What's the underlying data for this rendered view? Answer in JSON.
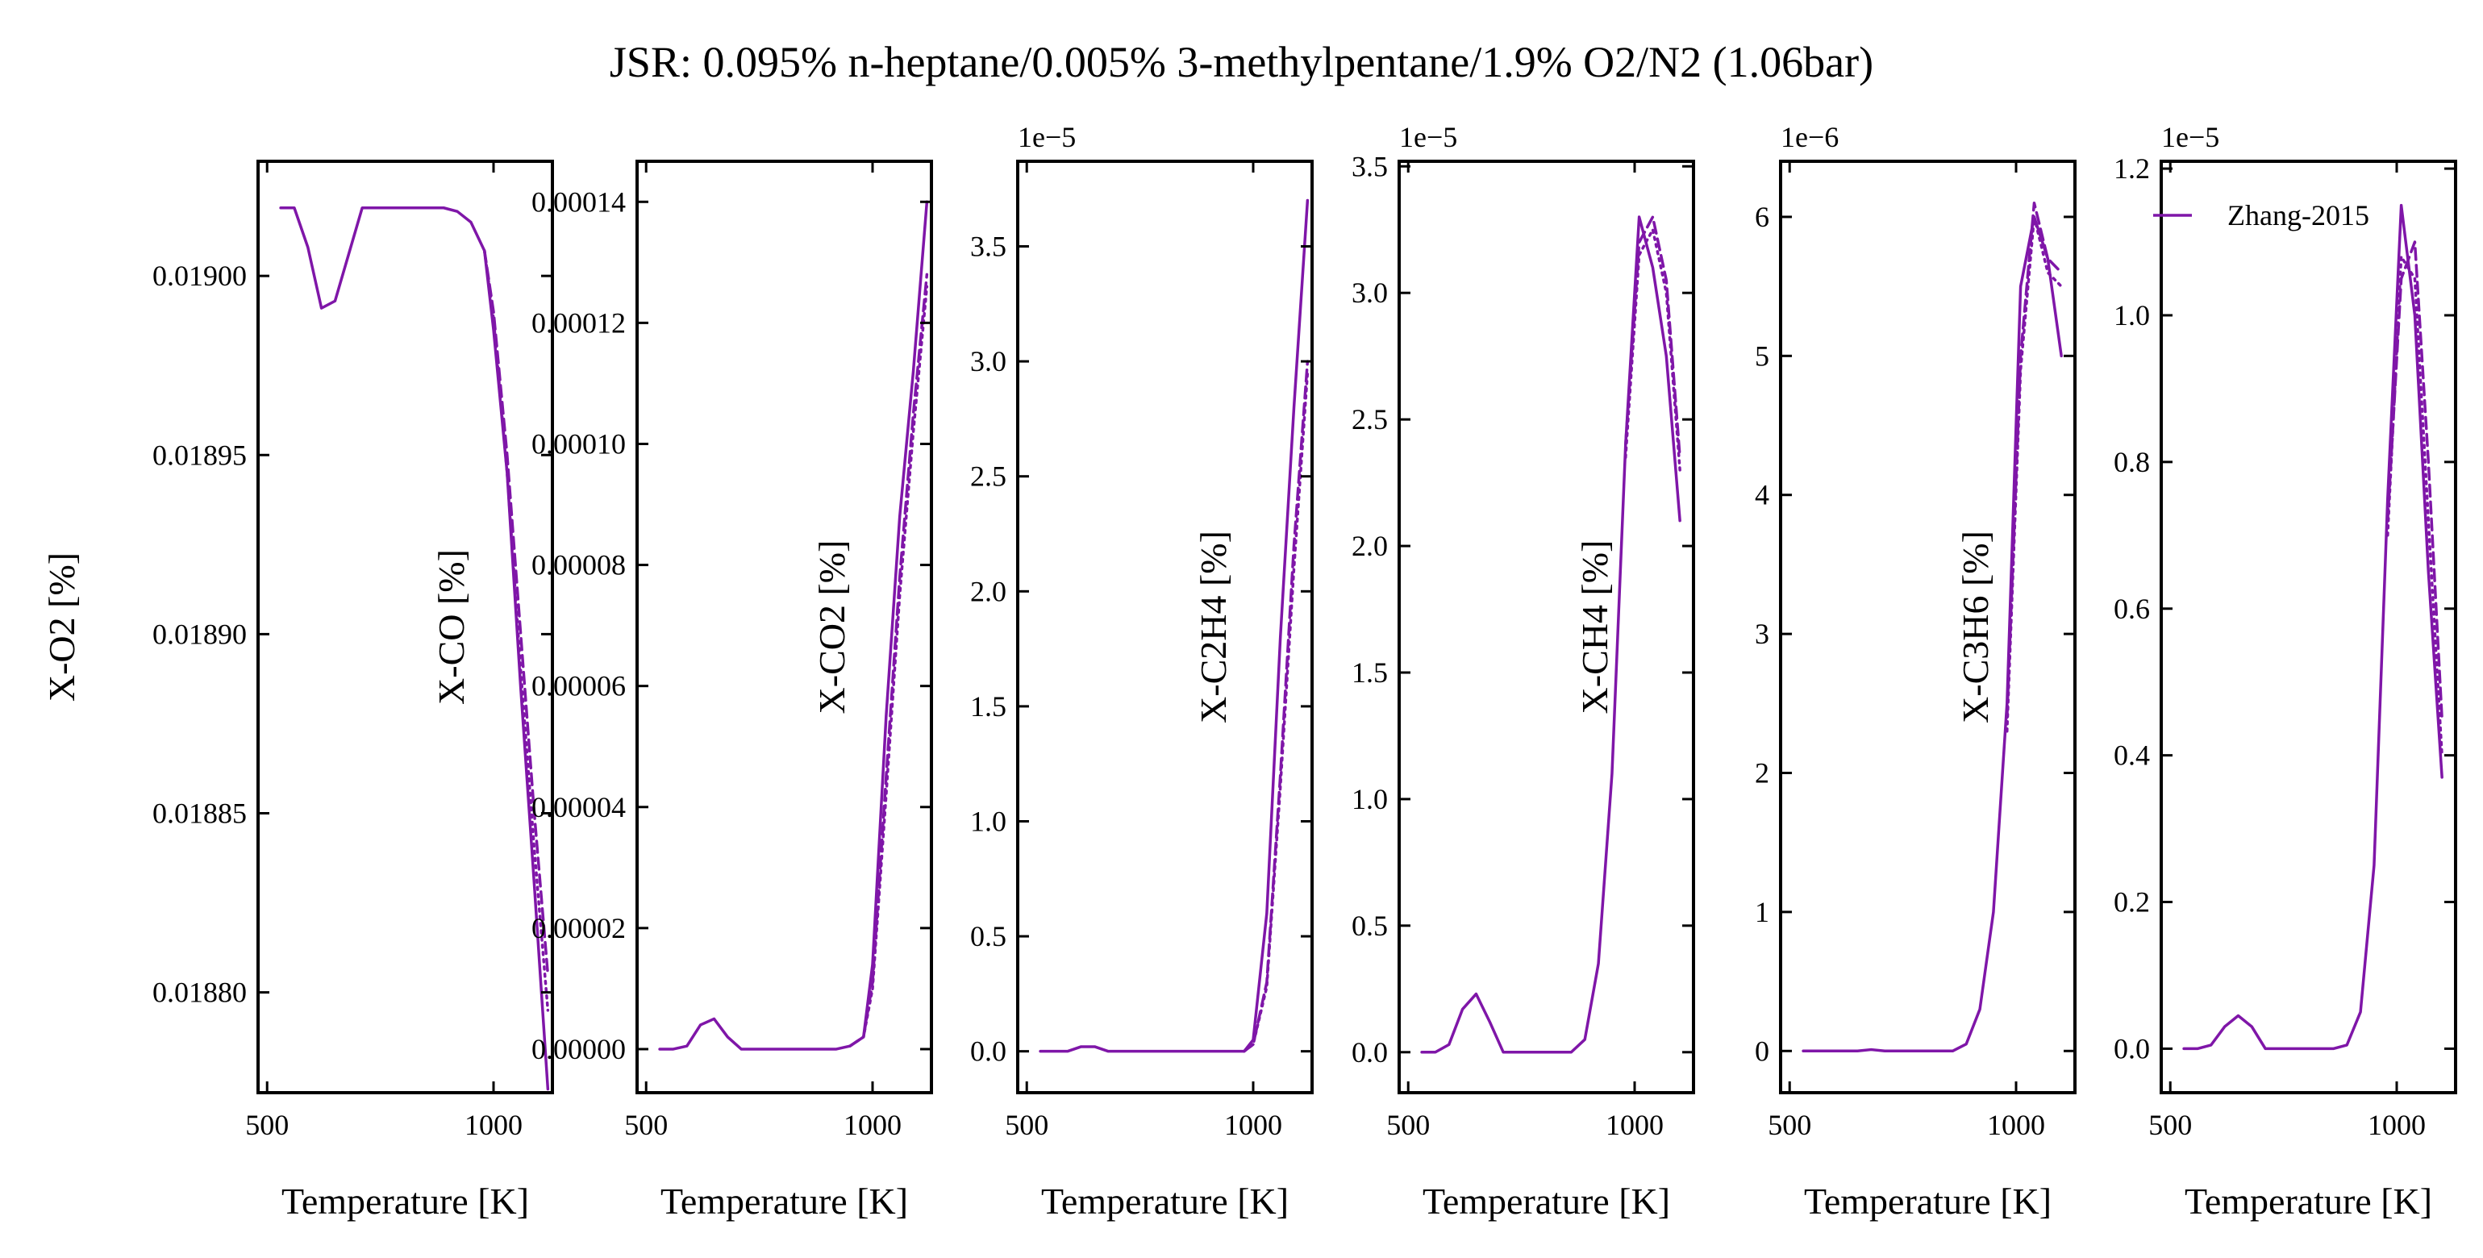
{
  "title": "JSR: 0.095% n-heptane/0.005% 3-methylpentane/1.9% O2/N2 (1.06bar)",
  "colors": {
    "series": "#7f16a8",
    "axes": "#000000"
  },
  "chart_data": [
    {
      "type": "line",
      "xlabel": "Temperature [K]",
      "ylabel": "X-O2 [%]",
      "xlim": [
        480,
        1130
      ],
      "xticks": [
        500,
        1000
      ],
      "xtick_labels": [
        "500",
        "1000"
      ],
      "ylim": [
        0.018772,
        0.019032
      ],
      "yticks": [
        0.0188,
        0.01885,
        0.0189,
        0.01895,
        0.019
      ],
      "ytick_labels": [
        "0.01880",
        "0.01885",
        "0.01890",
        "0.01895",
        "0.01900"
      ],
      "offset_text": "",
      "series": [
        {
          "style": "solid",
          "x": [
            530,
            560,
            590,
            620,
            650,
            680,
            710,
            740,
            770,
            800,
            830,
            860,
            890,
            920,
            950,
            980,
            1000,
            1030,
            1060,
            1090,
            1120
          ],
          "y": [
            0.019019,
            0.019019,
            0.019008,
            0.018991,
            0.018993,
            0.019006,
            0.019019,
            0.019019,
            0.019019,
            0.019019,
            0.019019,
            0.019019,
            0.019019,
            0.019018,
            0.019015,
            0.019007,
            0.018985,
            0.018945,
            0.018885,
            0.01883,
            0.018773
          ]
        },
        {
          "style": "dashed",
          "x": [
            980,
            1000,
            1030,
            1060,
            1090,
            1120
          ],
          "y": [
            0.019007,
            0.01899,
            0.01895,
            0.0189,
            0.01885,
            0.018805
          ]
        },
        {
          "style": "dotted",
          "x": [
            980,
            1000,
            1030,
            1060,
            1090,
            1120
          ],
          "y": [
            0.019007,
            0.018988,
            0.018945,
            0.01889,
            0.01884,
            0.018795
          ]
        }
      ]
    },
    {
      "type": "line",
      "xlabel": "Temperature [K]",
      "ylabel": "X-CO [%]",
      "xlim": [
        480,
        1130
      ],
      "xticks": [
        500,
        1000
      ],
      "xtick_labels": [
        "500",
        "1000"
      ],
      "ylim": [
        -7.2e-06,
        0.0001467
      ],
      "yticks": [
        0,
        2e-05,
        4e-05,
        6e-05,
        8e-05,
        0.0001,
        0.00012,
        0.00014
      ],
      "ytick_labels": [
        "0.00000",
        "0.00002",
        "0.00004",
        "0.00006",
        "0.00008",
        "0.00010",
        "0.00012",
        "0.00014"
      ],
      "offset_text": "",
      "series": [
        {
          "style": "solid",
          "x": [
            530,
            560,
            590,
            620,
            650,
            680,
            710,
            740,
            770,
            800,
            830,
            860,
            890,
            920,
            950,
            980,
            1000,
            1030,
            1060,
            1090,
            1120
          ],
          "y": [
            0,
            0,
            5e-07,
            4e-06,
            5e-06,
            2e-06,
            0,
            0,
            0,
            0,
            0,
            0,
            0,
            0,
            5e-07,
            2e-06,
            1.4e-05,
            5.5e-05,
            8.8e-05,
            0.000112,
            0.00014
          ]
        },
        {
          "style": "dashed",
          "x": [
            950,
            980,
            1000,
            1030,
            1060,
            1090,
            1120
          ],
          "y": [
            5e-07,
            2e-06,
            1.1e-05,
            4.5e-05,
            7.8e-05,
            0.000105,
            0.000128
          ]
        },
        {
          "style": "dotted",
          "x": [
            950,
            980,
            1000,
            1030,
            1060,
            1090,
            1120
          ],
          "y": [
            5e-07,
            2e-06,
            1e-05,
            4.2e-05,
            7.5e-05,
            0.000102,
            0.000126
          ]
        }
      ]
    },
    {
      "type": "line",
      "xlabel": "Temperature [K]",
      "ylabel": "X-CO2 [%]",
      "xlim": [
        480,
        1130
      ],
      "xticks": [
        500,
        1000
      ],
      "xtick_labels": [
        "500",
        "1000"
      ],
      "ylim": [
        -1.8e-06,
        3.87e-05
      ],
      "yticks": [
        0,
        5e-06,
        1e-05,
        1.5e-05,
        2e-05,
        2.5e-05,
        3e-05,
        3.5e-05
      ],
      "ytick_labels": [
        "0.0",
        "0.5",
        "1.0",
        "1.5",
        "2.0",
        "2.5",
        "3.0",
        "3.5"
      ],
      "offset_text": "1e−5",
      "series": [
        {
          "style": "solid",
          "x": [
            530,
            560,
            590,
            620,
            650,
            680,
            710,
            740,
            770,
            800,
            830,
            860,
            890,
            920,
            950,
            980,
            1000,
            1030,
            1060,
            1090,
            1120
          ],
          "y": [
            0,
            0,
            0,
            2e-07,
            2e-07,
            0,
            0,
            0,
            0,
            0,
            0,
            0,
            0,
            0,
            0,
            0,
            5e-07,
            6e-06,
            1.8e-05,
            2.8e-05,
            3.7e-05
          ]
        },
        {
          "style": "dashed",
          "x": [
            980,
            1000,
            1030,
            1060,
            1090,
            1120
          ],
          "y": [
            0,
            3e-07,
            3e-06,
            1.2e-05,
            2.2e-05,
            3e-05
          ]
        },
        {
          "style": "dotted",
          "x": [
            980,
            1000,
            1030,
            1060,
            1090,
            1120
          ],
          "y": [
            0,
            3e-07,
            2.8e-06,
            1.15e-05,
            2.1e-05,
            2.95e-05
          ]
        }
      ]
    },
    {
      "type": "line",
      "xlabel": "Temperature [K]",
      "ylabel": "X-C2H4 [%]",
      "xlim": [
        480,
        1130
      ],
      "xticks": [
        500,
        1000
      ],
      "xtick_labels": [
        "500",
        "1000"
      ],
      "ylim": [
        -1.6e-06,
        3.52e-05
      ],
      "yticks": [
        0,
        5e-06,
        1e-05,
        1.5e-05,
        2e-05,
        2.5e-05,
        3e-05,
        3.5e-05
      ],
      "ytick_labels": [
        "0.0",
        "0.5",
        "1.0",
        "1.5",
        "2.0",
        "2.5",
        "3.0",
        "3.5"
      ],
      "offset_text": "1e−5",
      "series": [
        {
          "style": "solid",
          "x": [
            530,
            560,
            590,
            620,
            650,
            680,
            710,
            740,
            770,
            800,
            830,
            860,
            890,
            920,
            950,
            980,
            1010,
            1040,
            1070,
            1100
          ],
          "y": [
            0,
            0,
            3e-07,
            1.7e-06,
            2.3e-06,
            1.2e-06,
            0,
            0,
            0,
            0,
            0,
            0,
            5e-07,
            3.5e-06,
            1.1e-05,
            2.4e-05,
            3.3e-05,
            3.1e-05,
            2.75e-05,
            2.1e-05
          ]
        },
        {
          "style": "dashed",
          "x": [
            980,
            1010,
            1040,
            1070,
            1100
          ],
          "y": [
            2.4e-05,
            3.2e-05,
            3.3e-05,
            3.05e-05,
            2.35e-05
          ]
        },
        {
          "style": "dotted",
          "x": [
            980,
            1010,
            1040,
            1070,
            1100
          ],
          "y": [
            2.35e-05,
            3.15e-05,
            3.25e-05,
            3e-05,
            2.3e-05
          ]
        }
      ]
    },
    {
      "type": "line",
      "xlabel": "Temperature [K]",
      "ylabel": "X-CH4 [%]",
      "xlim": [
        480,
        1130
      ],
      "xticks": [
        500,
        1000
      ],
      "xtick_labels": [
        "500",
        "1000"
      ],
      "ylim": [
        -3e-07,
        6.4e-06
      ],
      "yticks": [
        0,
        1e-06,
        2e-06,
        3e-06,
        4e-06,
        5e-06,
        6e-06
      ],
      "ytick_labels": [
        "0",
        "1",
        "2",
        "3",
        "4",
        "5",
        "6"
      ],
      "offset_text": "1e−6",
      "series": [
        {
          "style": "solid",
          "x": [
            530,
            560,
            590,
            620,
            650,
            680,
            710,
            740,
            770,
            800,
            830,
            860,
            890,
            920,
            950,
            980,
            1010,
            1040,
            1070,
            1100
          ],
          "y": [
            0,
            0,
            0,
            0,
            0,
            1e-08,
            0,
            0,
            0,
            0,
            0,
            0,
            5e-08,
            3e-07,
            1e-06,
            2.5e-06,
            5.5e-06,
            6e-06,
            5.7e-06,
            5e-06
          ]
        },
        {
          "style": "dashed",
          "x": [
            980,
            1010,
            1040,
            1070,
            1100
          ],
          "y": [
            2.4e-06,
            5e-06,
            6.1e-06,
            5.7e-06,
            5.6e-06
          ]
        },
        {
          "style": "dotted",
          "x": [
            980,
            1010,
            1040,
            1070,
            1100
          ],
          "y": [
            2.3e-06,
            4.9e-06,
            6e-06,
            5.6e-06,
            5.5e-06
          ]
        }
      ]
    },
    {
      "type": "line",
      "xlabel": "Temperature [K]",
      "ylabel": "X-C3H6 [%]",
      "xlim": [
        480,
        1130
      ],
      "xticks": [
        500,
        1000
      ],
      "xtick_labels": [
        "500",
        "1000"
      ],
      "ylim": [
        -6e-07,
        1.21e-05
      ],
      "yticks": [
        0,
        2e-06,
        4e-06,
        6e-06,
        8e-06,
        1e-05,
        1.2e-05
      ],
      "ytick_labels": [
        "0.0",
        "0.2",
        "0.4",
        "0.6",
        "0.8",
        "1.0",
        "1.2"
      ],
      "offset_text": "1e−5",
      "legend": {
        "location": "top-right",
        "entries": [
          "Zhang-2015"
        ]
      },
      "series": [
        {
          "name": "Zhang-2015",
          "style": "solid",
          "x": [
            530,
            560,
            590,
            620,
            650,
            680,
            710,
            740,
            770,
            800,
            830,
            860,
            890,
            920,
            950,
            980,
            1010,
            1040,
            1070,
            1100
          ],
          "y": [
            0,
            0,
            5e-08,
            3e-07,
            4.5e-07,
            3e-07,
            0,
            0,
            0,
            0,
            0,
            0,
            5e-08,
            5e-07,
            2.5e-06,
            7.5e-06,
            1.15e-05,
            1e-05,
            6.5e-06,
            3.7e-06
          ]
        },
        {
          "style": "dashed",
          "x": [
            980,
            1010,
            1040,
            1070,
            1100
          ],
          "y": [
            7.2e-06,
            1.05e-05,
            1.1e-05,
            8e-06,
            4.5e-06
          ]
        },
        {
          "style": "dotted",
          "x": [
            980,
            1010,
            1040,
            1070,
            1100
          ],
          "y": [
            7e-06,
            1.08e-05,
            1.05e-05,
            7.2e-06,
            4e-06
          ]
        }
      ]
    }
  ]
}
